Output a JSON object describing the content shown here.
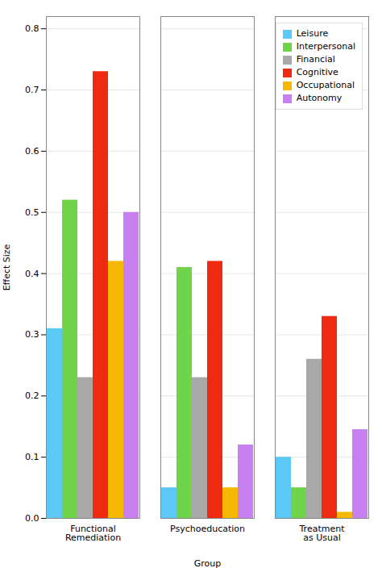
{
  "chart_data": {
    "type": "bar",
    "categories": [
      "Functional\nRemediation",
      "Psychoeducation",
      "Treatment\nas Usual"
    ],
    "series": [
      {
        "name": "Leisure",
        "color": "#5BC8F5",
        "values": [
          0.31,
          0.05,
          0.1
        ]
      },
      {
        "name": "Interpersonal",
        "color": "#6FD44A",
        "values": [
          0.52,
          0.41,
          0.05
        ]
      },
      {
        "name": "Financial",
        "color": "#A8A8A8",
        "values": [
          0.23,
          0.23,
          0.26
        ]
      },
      {
        "name": "Cognitive",
        "color": "#EE2A10",
        "values": [
          0.73,
          0.42,
          0.33
        ]
      },
      {
        "name": "Occupational",
        "color": "#F5B800",
        "values": [
          0.42,
          0.05,
          0.01
        ]
      },
      {
        "name": "Autonomy",
        "color": "#C880F0",
        "values": [
          0.5,
          0.12,
          0.145
        ]
      }
    ],
    "xlabel": "Group",
    "ylabel": "Effect Size",
    "ylim": [
      0,
      0.82
    ],
    "yticks": [
      {
        "value": 0,
        "label": "0.0"
      },
      0.1,
      0.2,
      0.3,
      0.4,
      0.5,
      0.6,
      0.7,
      0.8
    ],
    "grid": true,
    "legend": "upper right"
  }
}
